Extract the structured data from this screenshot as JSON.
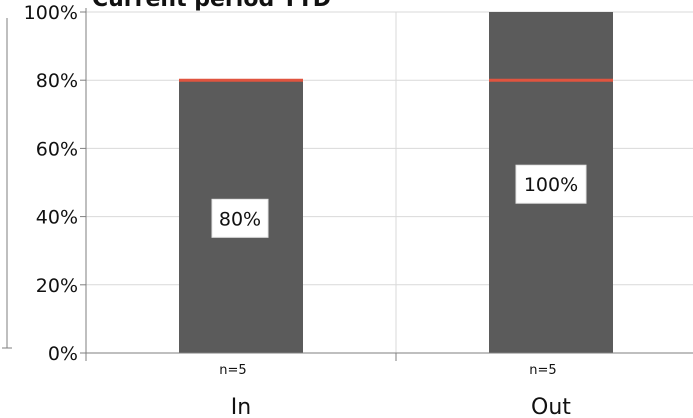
{
  "chart_data": {
    "type": "bar",
    "title": "Current period YTD",
    "categories": [
      "In",
      "Out"
    ],
    "values": [
      80,
      100
    ],
    "value_labels": [
      "80%",
      "100%"
    ],
    "n_labels": [
      "n=5",
      "n=5"
    ],
    "target_line": 80,
    "ylim": [
      0,
      100
    ],
    "yticks": [
      0,
      20,
      40,
      60,
      80,
      100
    ],
    "ytick_labels": [
      "0%",
      "20%",
      "40%",
      "60%",
      "80%",
      "100%"
    ],
    "grid": true,
    "legend": "none",
    "colors": {
      "bar": "#5b5b5b",
      "target": "#e0543f",
      "grid": "#d9d9d9",
      "axis": "#7f7f7f"
    }
  }
}
